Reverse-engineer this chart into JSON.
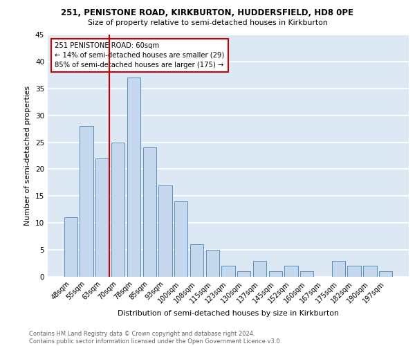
{
  "title1": "251, PENISTONE ROAD, KIRKBURTON, HUDDERSFIELD, HD8 0PE",
  "title2": "Size of property relative to semi-detached houses in Kirkburton",
  "xlabel": "Distribution of semi-detached houses by size in Kirkburton",
  "ylabel": "Number of semi-detached properties",
  "categories": [
    "48sqm",
    "55sqm",
    "63sqm",
    "70sqm",
    "78sqm",
    "85sqm",
    "93sqm",
    "100sqm",
    "108sqm",
    "115sqm",
    "123sqm",
    "130sqm",
    "137sqm",
    "145sqm",
    "152sqm",
    "160sqm",
    "167sqm",
    "175sqm",
    "182sqm",
    "190sqm",
    "197sqm"
  ],
  "values": [
    11,
    28,
    22,
    25,
    37,
    24,
    17,
    14,
    6,
    5,
    2,
    1,
    3,
    1,
    2,
    1,
    0,
    3,
    2,
    2,
    1
  ],
  "bar_color": "#c5d8ee",
  "bar_edge_color": "#5b8db8",
  "background_color": "#dce9f5",
  "grid_color": "#ffffff",
  "ref_line_index": 2,
  "annotation_title": "251 PENISTONE ROAD: 60sqm",
  "annotation_line1": "← 14% of semi-detached houses are smaller (29)",
  "annotation_line2": "85% of semi-detached houses are larger (175) →",
  "ref_color": "#cc0000",
  "footer": "Contains HM Land Registry data © Crown copyright and database right 2024.\nContains public sector information licensed under the Open Government Licence v3.0.",
  "ylim": [
    0,
    45
  ],
  "yticks": [
    0,
    5,
    10,
    15,
    20,
    25,
    30,
    35,
    40,
    45
  ]
}
